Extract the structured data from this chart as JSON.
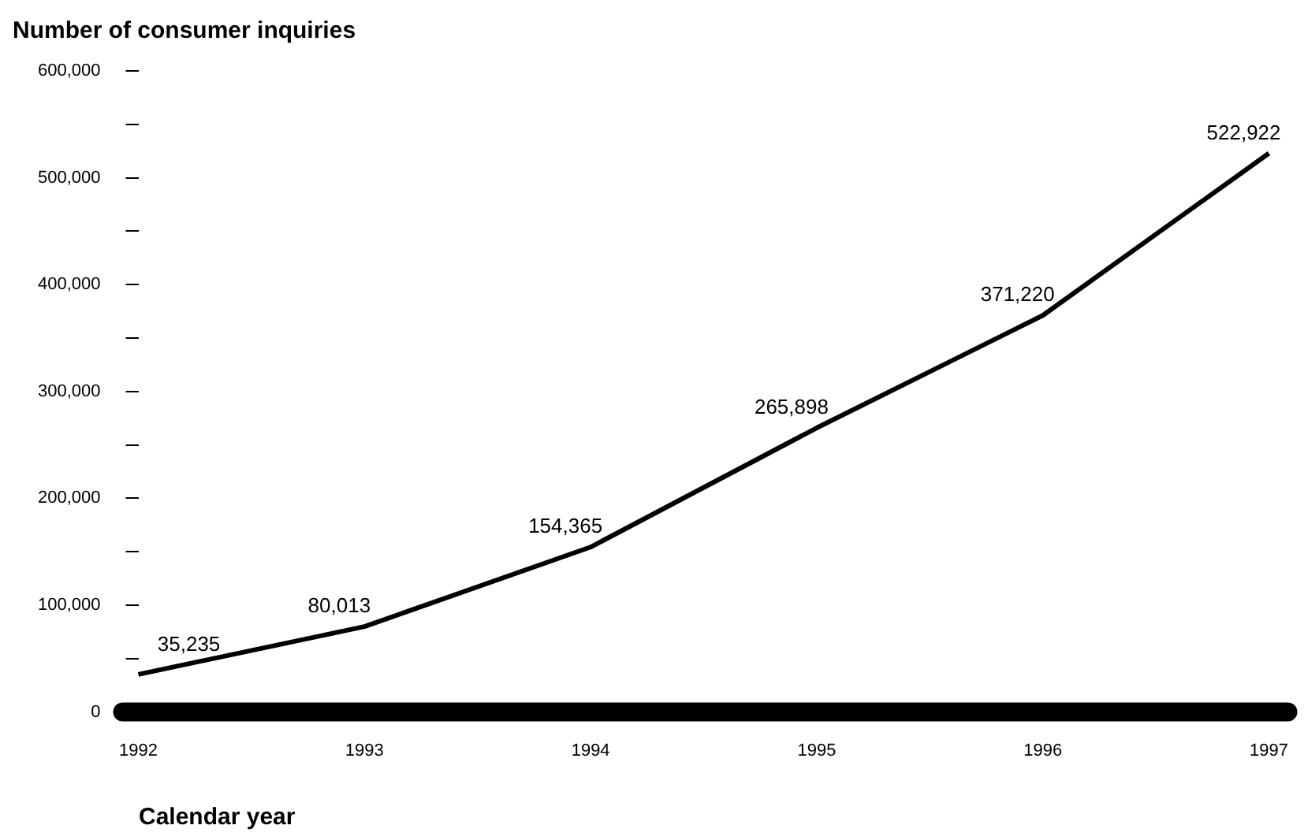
{
  "chart_data": {
    "type": "line",
    "title": "Number of consumer inquiries",
    "xlabel": "Calendar year",
    "categories": [
      "1992",
      "1993",
      "1994",
      "1995",
      "1996",
      "1997"
    ],
    "series": [
      {
        "color": "#000000",
        "values": [
          35235,
          80013,
          154365,
          265898,
          371220,
          522922
        ],
        "value_labels": [
          "35,235",
          "80,013",
          "154,365",
          "265,898",
          "371,220",
          "522,922"
        ]
      }
    ],
    "ylim": [
      0,
      600000
    ],
    "yticks": [
      0,
      {
        "value": 50000,
        "label": null
      },
      {
        "value": 100000,
        "label": "100,000"
      },
      {
        "value": 150000,
        "label": null
      },
      {
        "value": 200000,
        "label": "200,000"
      },
      {
        "value": 250000,
        "label": null
      },
      {
        "value": 300000,
        "label": "300,000"
      },
      {
        "value": 350000,
        "label": null
      },
      {
        "value": 400000,
        "label": "400,000"
      },
      {
        "value": 450000,
        "label": null
      },
      {
        "value": 500000,
        "label": "500,000"
      },
      {
        "value": 550000,
        "label": null
      },
      {
        "value": 600000,
        "label": "600,000"
      }
    ],
    "grid": false,
    "legend": false,
    "marker": "none",
    "line_style": "solid"
  }
}
